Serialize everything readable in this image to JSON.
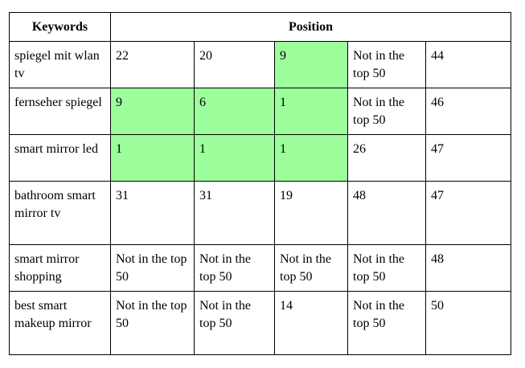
{
  "header": {
    "keywords": "Keywords",
    "position": "Position"
  },
  "highlight_color": "#9cff9c",
  "rows": [
    {
      "keyword": "spiegel mit wlan tv",
      "positions": [
        "22",
        "20",
        "9",
        "Not in the top 50",
        "44"
      ],
      "highlighted": [
        false,
        false,
        true,
        false,
        false
      ]
    },
    {
      "keyword": "fernseher spiegel",
      "positions": [
        "9",
        "6",
        "1",
        "Not in the top 50",
        "46"
      ],
      "highlighted": [
        true,
        true,
        true,
        false,
        false
      ]
    },
    {
      "keyword": "smart mirror led",
      "positions": [
        "1",
        "1",
        "1",
        "26",
        "47"
      ],
      "highlighted": [
        true,
        true,
        true,
        false,
        false
      ]
    },
    {
      "keyword": "bathroom smart mirror tv",
      "positions": [
        "31",
        "31",
        "19",
        "48",
        "47"
      ],
      "highlighted": [
        false,
        false,
        false,
        false,
        false
      ]
    },
    {
      "keyword": "smart mirror shopping",
      "positions": [
        "Not in the top 50",
        "Not in the top 50",
        "Not in the top 50",
        "Not in the top 50",
        "48"
      ],
      "highlighted": [
        false,
        false,
        false,
        false,
        false
      ]
    },
    {
      "keyword": "best smart makeup mirror",
      "positions": [
        "Not in the top 50",
        "Not in the top 50",
        "14",
        "Not in the top 50",
        "50"
      ],
      "highlighted": [
        false,
        false,
        false,
        false,
        false
      ]
    }
  ]
}
